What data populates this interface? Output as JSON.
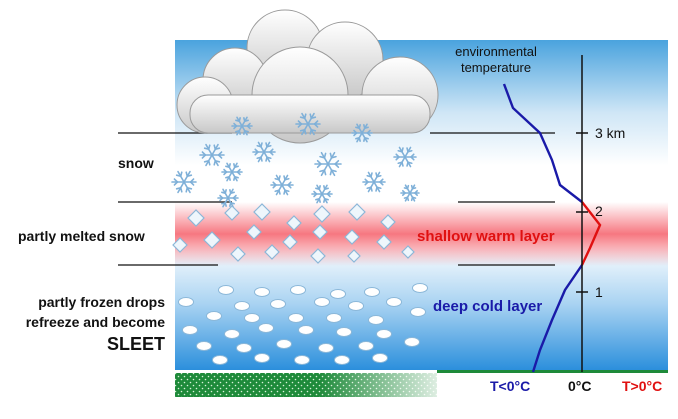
{
  "left_labels": {
    "snow": "snow",
    "partly_melted": "partly melted snow",
    "frozen_line1": "partly frozen drops",
    "frozen_line2": "refreeze and become",
    "frozen_line3": "SLEET"
  },
  "layers": {
    "warm": "shallow warm layer",
    "cold": "deep cold layer"
  },
  "curve_label_line1": "environmental",
  "curve_label_line2": "temperature",
  "height_ticks": [
    "3 km",
    "2",
    "1"
  ],
  "temp_axis": {
    "below": "T<0°C",
    "zero": "0°C",
    "above": "T>0°C"
  },
  "colors": {
    "sky_top": "#4aa3de",
    "sky_mid": "#ffffff",
    "warm_band": "#f6707a",
    "cold_bottom": "#2b8fdc",
    "ground": "#1e8a3a",
    "curve_cold": "#1a1aa8",
    "curve_warm": "#e01010",
    "warm_text": "#e01010",
    "cold_text": "#1a1aa8"
  }
}
